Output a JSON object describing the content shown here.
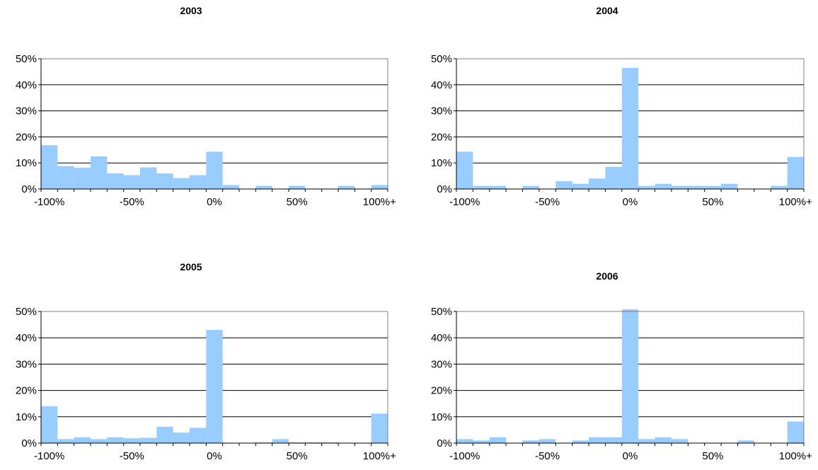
{
  "colors": {
    "bar": "#99ccff",
    "gridline": "#000000",
    "plot_border": "#808080",
    "background": "#ffffff"
  },
  "chart_data": [
    {
      "type": "bar",
      "title": "2003",
      "x_tick_labels": [
        "-100%",
        "-50%",
        "0%",
        "50%",
        "100%+"
      ],
      "y_tick_labels": [
        "0%",
        "10%",
        "20%",
        "30%",
        "40%",
        "50%"
      ],
      "ylim": [
        0,
        50
      ],
      "grid": true,
      "legend": "none",
      "values": [
        16.8,
        8.8,
        8.2,
        12.5,
        6.0,
        5.3,
        8.3,
        6.0,
        4.2,
        5.3,
        14.3,
        1.5,
        0,
        1.2,
        0,
        1.2,
        0,
        0,
        1.2,
        0,
        1.5
      ]
    },
    {
      "type": "bar",
      "title": "2004",
      "x_tick_labels": [
        "-100%",
        "-50%",
        "0%",
        "50%",
        "100%+"
      ],
      "y_tick_labels": [
        "0%",
        "10%",
        "20%",
        "30%",
        "40%",
        "50%"
      ],
      "ylim": [
        0,
        50
      ],
      "grid": true,
      "legend": "none",
      "values": [
        14.3,
        1.2,
        1.2,
        0,
        1.2,
        0,
        3.0,
        2.0,
        4.0,
        8.5,
        46.5,
        1.2,
        2.0,
        1.2,
        1.2,
        1.2,
        2.0,
        0,
        0,
        1.2,
        12.3
      ]
    },
    {
      "type": "bar",
      "title": "2005",
      "x_tick_labels": [
        "-100%",
        "-50%",
        "0%",
        "50%",
        "100%+"
      ],
      "y_tick_labels": [
        "0%",
        "10%",
        "20%",
        "30%",
        "40%",
        "50%"
      ],
      "ylim": [
        0,
        50
      ],
      "grid": true,
      "legend": "none",
      "values": [
        14.0,
        1.5,
        2.2,
        1.5,
        2.2,
        1.8,
        2.0,
        6.2,
        4.0,
        5.8,
        43.0,
        0,
        0,
        0.3,
        1.5,
        0.3,
        0.3,
        0.3,
        0,
        0,
        11.2
      ]
    },
    {
      "type": "bar",
      "title": "2006",
      "x_tick_labels": [
        "-100%",
        "-50%",
        "0%",
        "50%",
        "100%+"
      ],
      "y_tick_labels": [
        "0%",
        "10%",
        "20%",
        "30%",
        "40%",
        "50%"
      ],
      "ylim": [
        0,
        50
      ],
      "grid": true,
      "legend": "none",
      "values": [
        1.5,
        1.0,
        2.2,
        0,
        1.0,
        1.5,
        0,
        1.0,
        2.2,
        2.2,
        50.8,
        1.5,
        2.2,
        1.5,
        0,
        0,
        0,
        1.0,
        0,
        0,
        8.2
      ]
    }
  ]
}
